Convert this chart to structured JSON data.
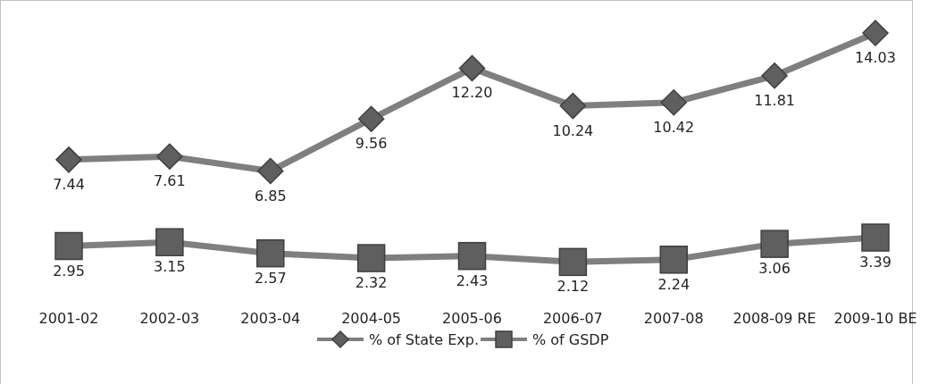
{
  "chart_data": {
    "type": "line",
    "categories": [
      "2001-02",
      "2002-03",
      "2003-04",
      "2004-05",
      "2005-06",
      "2006-07",
      "2007-08",
      "2008-09 RE",
      "2009-10 BE"
    ],
    "series": [
      {
        "name": "% of State Exp.",
        "color": "#7f7f7f",
        "marker": "diamond",
        "values": [
          7.44,
          7.61,
          6.85,
          9.56,
          12.2,
          10.24,
          10.42,
          11.81,
          14.03
        ],
        "value_labels": [
          "7.44",
          "7.61",
          "6.85",
          "9.56",
          "12.20",
          "10.24",
          "10.42",
          "11.81",
          "14.03"
        ]
      },
      {
        "name": "% of GSDP",
        "color": "#7f7f7f",
        "marker": "square",
        "values": [
          2.95,
          3.15,
          2.57,
          2.32,
          2.43,
          2.12,
          2.24,
          3.06,
          3.39
        ],
        "value_labels": [
          "2.95",
          "3.15",
          "2.57",
          "2.32",
          "2.43",
          "2.12",
          "2.24",
          "3.06",
          "3.39"
        ]
      }
    ],
    "data_labels": true,
    "legend": "bottom",
    "grid": false,
    "line_style": "solid"
  }
}
